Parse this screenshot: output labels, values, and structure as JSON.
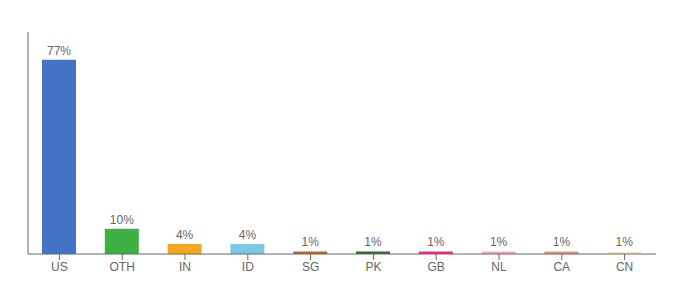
{
  "chart_data": {
    "type": "bar",
    "categories": [
      "US",
      "OTH",
      "IN",
      "ID",
      "SG",
      "PK",
      "GB",
      "NL",
      "CA",
      "CN"
    ],
    "values": [
      77,
      10,
      4,
      4,
      1,
      1,
      1,
      1,
      1,
      1
    ],
    "value_labels": [
      "77%",
      "10%",
      "4%",
      "4%",
      "1%",
      "1%",
      "1%",
      "1%",
      "1%",
      "1%"
    ],
    "colors": [
      "#4472c4",
      "#3cb043",
      "#f5a623",
      "#7ec8e3",
      "#c0622f",
      "#2d6a27",
      "#ff1f8e",
      "#f9a8c9",
      "#e8937a",
      "#f0f0d0"
    ],
    "ylim": [
      0,
      88
    ],
    "grid": false,
    "tick_labels": "x",
    "data_labels": true
  }
}
